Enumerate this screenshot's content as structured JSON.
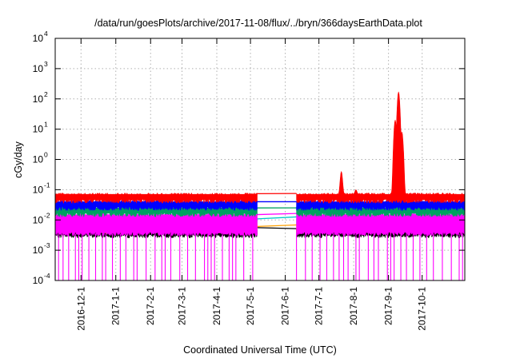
{
  "chart_data": {
    "type": "line",
    "title": "/data/run/goesPlots/archive/2017-11-08/flux/../bryn/366daysEarthData.plot",
    "xlabel": "Coordinated Universal Time (UTC)",
    "ylabel": "cGy/day",
    "yscale": "log",
    "ylim": [
      0.0001,
      10000
    ],
    "xlim": [
      "2016-11-08",
      "2017-11-08"
    ],
    "grid": true,
    "legend": "none",
    "x_ticks": [
      "2016-12-1",
      "2017-1-1",
      "2017-2-1",
      "2017-3-1",
      "2017-4-1",
      "2017-5-1",
      "2017-6-1",
      "2017-7-1",
      "2017-8-1",
      "2017-9-1",
      "2017-10-1"
    ],
    "y_ticks": [
      {
        "base": "10",
        "exp": "-4"
      },
      {
        "base": "10",
        "exp": "-3"
      },
      {
        "base": "10",
        "exp": "-2"
      },
      {
        "base": "10",
        "exp": "-1"
      },
      {
        "base": "10",
        "exp": "0"
      },
      {
        "base": "10",
        "exp": "1"
      },
      {
        "base": "10",
        "exp": "2"
      },
      {
        "base": "10",
        "exp": "3"
      },
      {
        "base": "10",
        "exp": "4"
      }
    ],
    "data_gap": [
      "2017-05-07",
      "2017-06-11"
    ],
    "series": [
      {
        "color": "#ff0000",
        "typical": 0.07,
        "peaks": [
          [
            "2017-07-21",
            0.4
          ],
          [
            "2017-08-03",
            0.1
          ],
          [
            "2017-09-07",
            20
          ],
          [
            "2017-09-10",
            170
          ],
          [
            "2017-09-13",
            8
          ]
        ]
      },
      {
        "color": "#0000ff",
        "typical": 0.04,
        "peaks": [
          [
            "2017-07-21",
            0.2
          ],
          [
            "2017-09-07",
            6
          ],
          [
            "2017-09-10",
            120
          ],
          [
            "2017-09-13",
            4
          ]
        ]
      },
      {
        "color": "#00a060",
        "typical": 0.025,
        "peaks": [
          [
            "2017-09-10",
            40
          ]
        ]
      },
      {
        "color": "#ff00ff",
        "typical": 0.015,
        "floor": 0.0035,
        "dropout_min": 0.0001,
        "peaks": [
          [
            "2017-09-10",
            10
          ]
        ]
      },
      {
        "color": "#00c8c8",
        "typical": 0.012,
        "peaks": []
      },
      {
        "color": "#ffa000",
        "typical": 0.007,
        "peaks": []
      },
      {
        "color": "#000000",
        "typical": 0.005,
        "peaks": []
      }
    ]
  }
}
